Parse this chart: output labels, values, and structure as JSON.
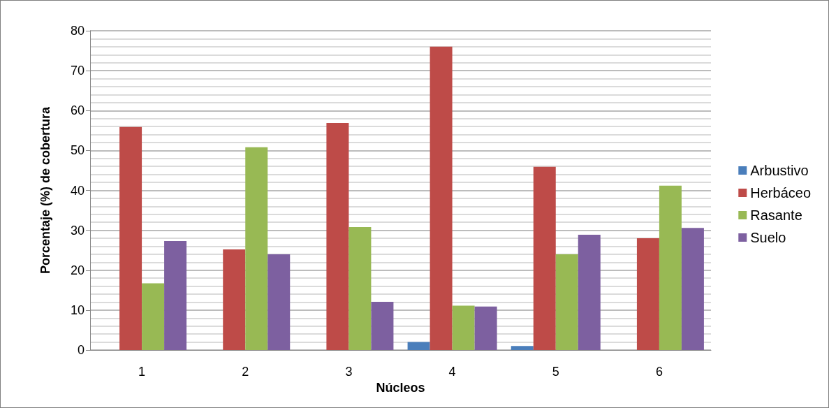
{
  "chart_data": {
    "type": "bar",
    "xlabel": "Núcleos",
    "ylabel": "Porcentaje (%) de cobertura",
    "categories": [
      "1",
      "2",
      "3",
      "4",
      "5",
      "6"
    ],
    "series": [
      {
        "name": "Arbustivo",
        "color": "#4a7ebb",
        "values": [
          0,
          0,
          0,
          2.0,
          1.0,
          0
        ]
      },
      {
        "name": "Herbáceo",
        "color": "#be4b48",
        "values": [
          55.9,
          25.2,
          56.9,
          76.0,
          45.9,
          28.0
        ]
      },
      {
        "name": "Rasante",
        "color": "#98b954",
        "values": [
          16.7,
          50.8,
          30.8,
          11.1,
          24.0,
          41.2
        ]
      },
      {
        "name": "Suelo",
        "color": "#7d60a0",
        "values": [
          27.3,
          24.0,
          12.1,
          10.9,
          28.9,
          30.6
        ]
      }
    ],
    "ylim": [
      0,
      80
    ],
    "yticks": [
      0,
      10,
      20,
      30,
      40,
      50,
      60,
      70,
      80
    ],
    "grid": "y",
    "legend": "right"
  }
}
